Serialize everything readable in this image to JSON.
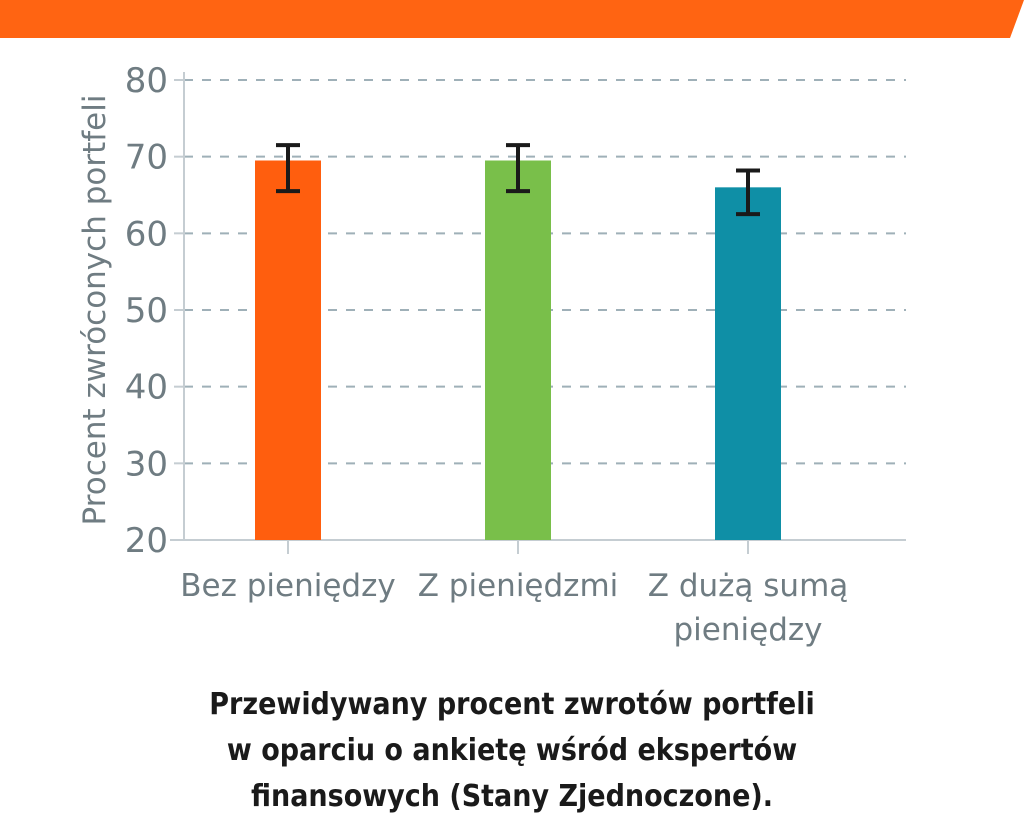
{
  "header_band": {
    "color": "#ff6412"
  },
  "chart_data": {
    "type": "bar",
    "ylabel": "Procent zwróconych portfeli",
    "xlabel": "",
    "ylim": [
      20,
      80
    ],
    "yticks": [
      20,
      30,
      40,
      50,
      60,
      70,
      80
    ],
    "grid": true,
    "legend": "none",
    "categories": [
      [
        "Bez pieniędzy"
      ],
      [
        "Z pieniędzmi"
      ],
      [
        "Z dużą sumą",
        "pieniędzy"
      ]
    ],
    "values": [
      69.5,
      69.5,
      66
    ],
    "error_bars": [
      {
        "low": 65.5,
        "high": 71.5
      },
      {
        "low": 65.5,
        "high": 71.5
      },
      {
        "low": 62.5,
        "high": 68.2
      }
    ],
    "colors": [
      "#ff5e0e",
      "#79bf4a",
      "#0f8fa6"
    ],
    "axis_color": "#c5cdd2",
    "grid_color": "#9fb0b8",
    "label_color": "#6f7c82"
  },
  "caption": {
    "line1": "Przewidywany procent zwrotów portfeli",
    "line2": "w oparciu o ankietę wśród ekspertów",
    "line3": "finansowych (Stany Zjednoczone)."
  }
}
